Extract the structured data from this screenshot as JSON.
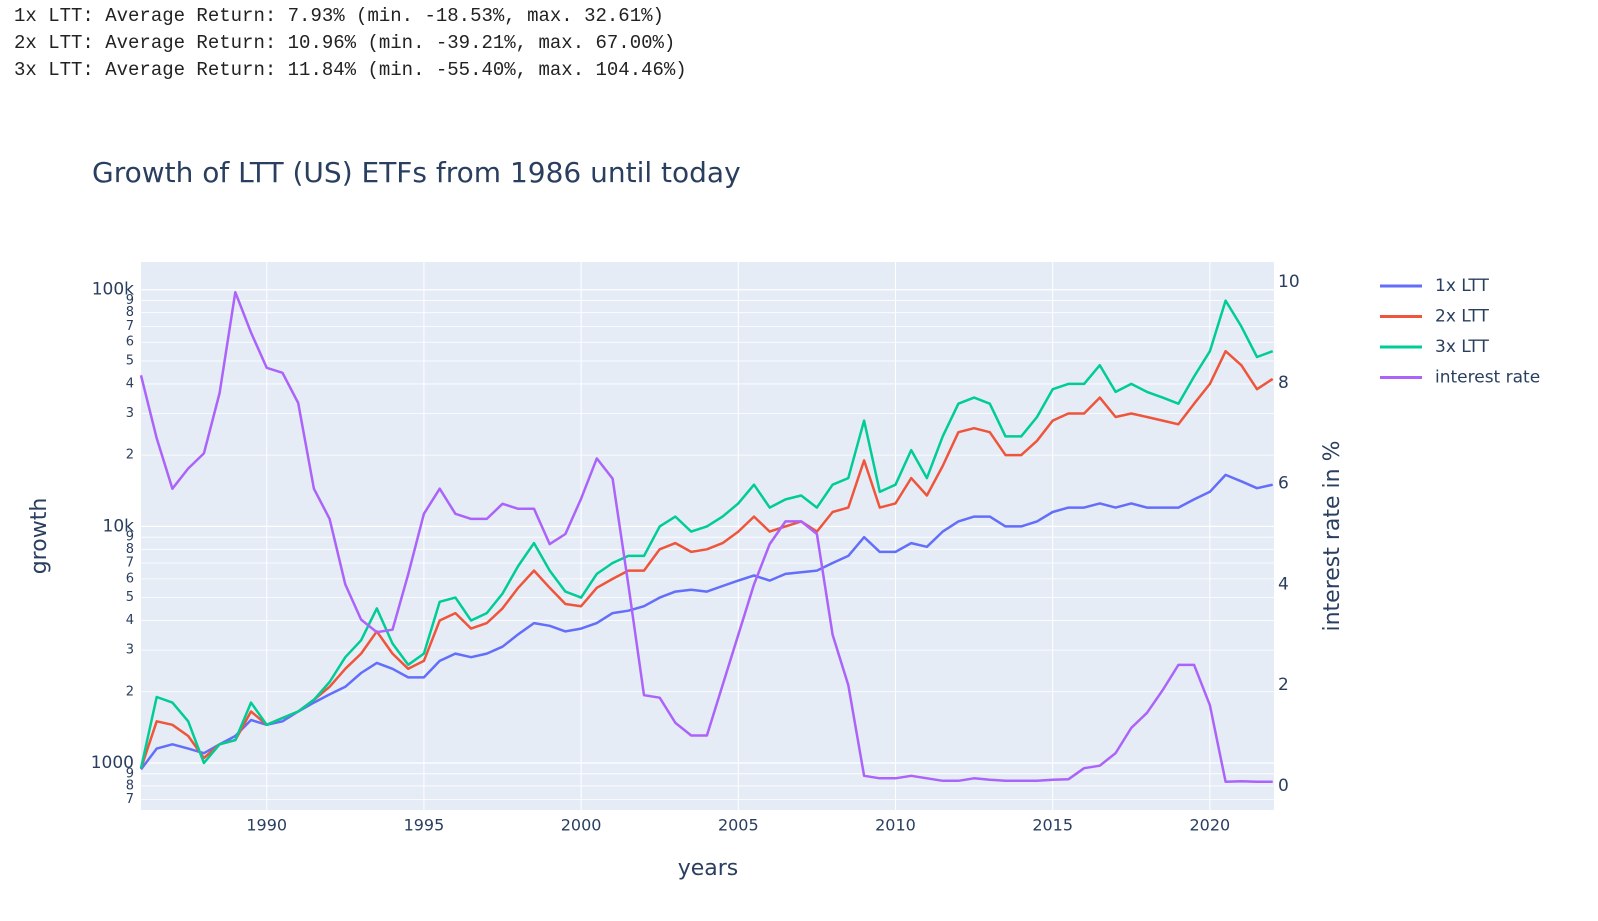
{
  "header_lines": [
    "1x LTT: Average Return: 7.93% (min. -18.53%, max. 32.61%)",
    "2x LTT: Average Return: 10.96% (min. -39.21%, max. 67.00%)",
    "3x LTT: Average Return: 11.84% (min. -55.40%, max. 104.46%)"
  ],
  "chart_data": {
    "type": "line",
    "title": "Growth of LTT (US) ETFs from 1986 until today",
    "x_label": "years",
    "y_label": "growth",
    "y2_label": "interest rate in %",
    "ylog": true,
    "grid": true,
    "legend": "right",
    "xlim": [
      1986,
      2022.04
    ],
    "xticks": [
      1990,
      1995,
      2000,
      2005,
      2010,
      2015,
      2020
    ],
    "ylim": [
      633,
      131000
    ],
    "yticks": [
      {
        "value": 700,
        "label": "7"
      },
      {
        "value": 800,
        "label": "8"
      },
      {
        "value": 900,
        "label": "9"
      },
      1000,
      {
        "value": 2000,
        "label": "2"
      },
      {
        "value": 3000,
        "label": "3"
      },
      {
        "value": 4000,
        "label": "4"
      },
      {
        "value": 5000,
        "label": "5"
      },
      {
        "value": 6000,
        "label": "6"
      },
      {
        "value": 7000,
        "label": "7"
      },
      {
        "value": 8000,
        "label": "8"
      },
      {
        "value": 9000,
        "label": "9"
      },
      {
        "value": 10000,
        "label": "10k"
      },
      {
        "value": 20000,
        "label": "2"
      },
      {
        "value": 30000,
        "label": "3"
      },
      {
        "value": 40000,
        "label": "4"
      },
      {
        "value": 50000,
        "label": "5"
      },
      {
        "value": 60000,
        "label": "6"
      },
      {
        "value": 70000,
        "label": "7"
      },
      {
        "value": 80000,
        "label": "8"
      },
      {
        "value": 90000,
        "label": "9"
      },
      {
        "value": 100000,
        "label": "100k"
      }
    ],
    "y2lim": [
      -0.48,
      10.4
    ],
    "y2ticks": [
      0,
      2,
      4,
      6,
      8,
      10
    ],
    "x": [
      1986,
      1986.5,
      1987,
      1987.5,
      1988,
      1988.5,
      1989,
      1989.5,
      1990,
      1990.5,
      1991,
      1991.5,
      1992,
      1992.5,
      1993,
      1993.5,
      1994,
      1994.5,
      1995,
      1995.5,
      1996,
      1996.5,
      1997,
      1997.5,
      1998,
      1998.5,
      1999,
      1999.5,
      2000,
      2000.5,
      2001,
      2001.5,
      2002,
      2002.5,
      2003,
      2003.5,
      2004,
      2004.5,
      2005,
      2005.5,
      2006,
      2006.5,
      2007,
      2007.5,
      2008,
      2008.5,
      2009,
      2009.5,
      2010,
      2010.5,
      2011,
      2011.5,
      2012,
      2012.5,
      2013,
      2013.5,
      2014,
      2014.5,
      2015,
      2015.5,
      2016,
      2016.5,
      2017,
      2017.5,
      2018,
      2018.5,
      2019,
      2019.5,
      2020,
      2020.5,
      2021,
      2021.5,
      2022
    ],
    "series": [
      {
        "name": "1x LTT",
        "color": "#636efa",
        "values": [
          940,
          1150,
          1200,
          1150,
          1100,
          1200,
          1300,
          1520,
          1450,
          1500,
          1650,
          1800,
          1950,
          2100,
          2400,
          2650,
          2500,
          2300,
          2300,
          2700,
          2900,
          2800,
          2900,
          3100,
          3500,
          3900,
          3800,
          3600,
          3700,
          3900,
          4300,
          4400,
          4600,
          5000,
          5300,
          5400,
          5300,
          5600,
          5900,
          6200,
          5900,
          6300,
          6400,
          6500,
          7000,
          7500,
          9000,
          7800,
          7800,
          8500,
          8200,
          9500,
          10500,
          11000,
          11000,
          10000,
          10000,
          10500,
          11500,
          12000,
          12000,
          12500,
          12000,
          12500,
          12000,
          12000,
          12000,
          13000,
          14000,
          16500,
          15500,
          14500,
          15000
        ]
      },
      {
        "name": "2x LTT",
        "color": "#ef553b",
        "values": [
          950,
          1500,
          1450,
          1300,
          1050,
          1200,
          1250,
          1650,
          1450,
          1550,
          1650,
          1850,
          2100,
          2500,
          2900,
          3600,
          2900,
          2500,
          2700,
          4000,
          4300,
          3700,
          3900,
          4500,
          5500,
          6500,
          5500,
          4700,
          4600,
          5500,
          6000,
          6500,
          6500,
          8000,
          8500,
          7800,
          8000,
          8500,
          9500,
          11000,
          9500,
          10000,
          10500,
          9500,
          11500,
          12000,
          19000,
          12000,
          12500,
          16000,
          13500,
          18000,
          25000,
          26000,
          25000,
          20000,
          20000,
          23000,
          28000,
          30000,
          30000,
          35000,
          29000,
          30000,
          29000,
          28000,
          27000,
          33000,
          40000,
          55000,
          48000,
          38000,
          42000
        ]
      },
      {
        "name": "3x LTT",
        "color": "#00cc96",
        "values": [
          950,
          1900,
          1800,
          1500,
          1000,
          1200,
          1250,
          1800,
          1450,
          1550,
          1650,
          1850,
          2200,
          2800,
          3300,
          4500,
          3200,
          2600,
          2900,
          4800,
          5000,
          4000,
          4300,
          5200,
          6800,
          8500,
          6500,
          5300,
          5000,
          6300,
          7000,
          7500,
          7500,
          10000,
          11000,
          9500,
          10000,
          11000,
          12500,
          15000,
          12000,
          13000,
          13500,
          12000,
          15000,
          16000,
          28000,
          14000,
          15000,
          21000,
          16000,
          24000,
          33000,
          35000,
          33000,
          24000,
          24000,
          29000,
          38000,
          40000,
          40000,
          48000,
          37000,
          40000,
          37000,
          35000,
          33000,
          43000,
          55000,
          90000,
          70000,
          52000,
          55000
        ]
      },
      {
        "name": "interest rate",
        "color": "#ab63fa",
        "axis": "y2",
        "values": [
          8.15,
          6.9,
          5.9,
          6.3,
          6.6,
          7.8,
          9.8,
          9.0,
          8.3,
          8.2,
          7.6,
          5.9,
          5.3,
          4.0,
          3.3,
          3.05,
          3.1,
          4.2,
          5.4,
          5.9,
          5.4,
          5.3,
          5.3,
          5.6,
          5.5,
          5.5,
          4.8,
          5.0,
          5.7,
          6.5,
          6.1,
          4.0,
          1.8,
          1.75,
          1.25,
          1.0,
          1.0,
          2.0,
          3.0,
          4.0,
          4.8,
          5.25,
          5.25,
          5.0,
          3.0,
          2.0,
          0.2,
          0.15,
          0.15,
          0.2,
          0.15,
          0.1,
          0.1,
          0.15,
          0.12,
          0.1,
          0.1,
          0.1,
          0.12,
          0.13,
          0.35,
          0.4,
          0.65,
          1.15,
          1.45,
          1.9,
          2.4,
          2.4,
          1.6,
          0.08,
          0.09,
          0.08,
          0.08
        ]
      }
    ]
  }
}
